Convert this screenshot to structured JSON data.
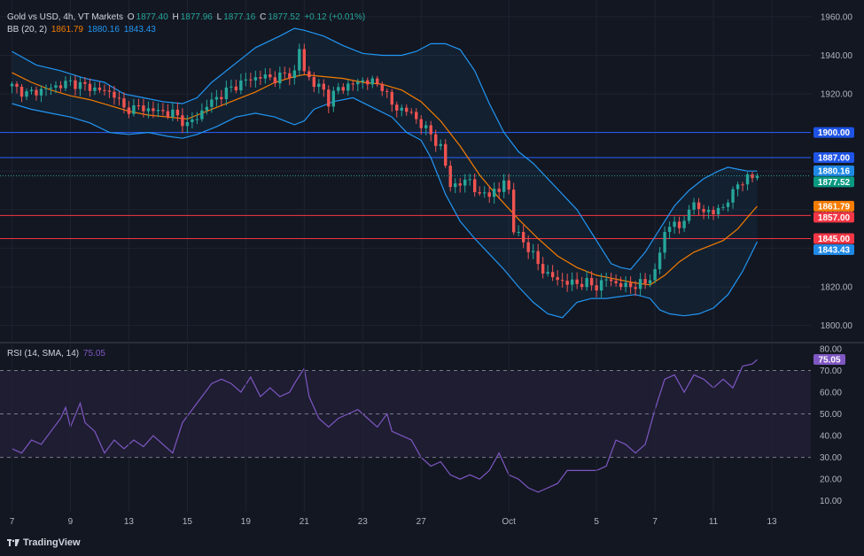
{
  "chart_data": [
    {
      "type": "candlestick",
      "title": "Gold vs USD, 4h, VT Markets",
      "ohlc_legend": {
        "o_label": "O",
        "o_value": "1877.40",
        "h_label": "H",
        "h_value": "1877.96",
        "l_label": "L",
        "l_value": "1877.16",
        "c_label": "C",
        "c_value": "1877.52",
        "change": "+0.12 (+0.01%)"
      },
      "indicator": {
        "name": "BB (20, 2)",
        "basis": "1861.79",
        "upper": "1880.16",
        "lower": "1843.43",
        "basis_color": "#f57c00",
        "band_color": "#2196f3"
      },
      "y_ticks": [
        "1960.00",
        "1940.00",
        "1920.00",
        "1900.00",
        "1880.00",
        "1860.00",
        "1840.00",
        "1820.00",
        "1800.00"
      ],
      "y_range": [
        1792,
        1965
      ],
      "price_tags": [
        {
          "value": 1900.0,
          "label": "1900.00",
          "color": "#1e53e5"
        },
        {
          "value": 1887.0,
          "label": "1887.00",
          "color": "#1e53e5"
        },
        {
          "value": 1880.16,
          "label": "1880.16",
          "color": "#1e88e5"
        },
        {
          "value": 1877.52,
          "label": "1877.52",
          "color": "#089981"
        },
        {
          "value": 1861.79,
          "label": "1861.79",
          "color": "#f57c00"
        },
        {
          "value": 1857.0,
          "label": "1857.00",
          "color": "#f23645"
        },
        {
          "value": 1845.0,
          "label": "1845.00",
          "color": "#f23645"
        },
        {
          "value": 1843.43,
          "label": "1843.43",
          "color": "#1e88e5"
        }
      ],
      "horizontal_lines": [
        {
          "value": 1900,
          "color": "#2962ff"
        },
        {
          "value": 1887,
          "color": "#2962ff"
        },
        {
          "value": 1857,
          "color": "#f23645"
        },
        {
          "value": 1845,
          "color": "#f23645"
        }
      ],
      "x_ticks": [
        {
          "label": "7",
          "t": 0
        },
        {
          "label": "9",
          "t": 12
        },
        {
          "label": "13",
          "t": 24
        },
        {
          "label": "15",
          "t": 36
        },
        {
          "label": "19",
          "t": 48
        },
        {
          "label": "21",
          "t": 60
        },
        {
          "label": "23",
          "t": 72
        },
        {
          "label": "27",
          "t": 84
        },
        {
          "label": "Oct",
          "t": 102
        },
        {
          "label": "5",
          "t": 120
        },
        {
          "label": "7",
          "t": 132
        },
        {
          "label": "11",
          "t": 144
        },
        {
          "label": "13",
          "t": 156
        }
      ],
      "x_range": [
        -1,
        164
      ],
      "close_path": [
        [
          0,
          1924
        ],
        [
          3,
          1920
        ],
        [
          6,
          1922
        ],
        [
          9,
          1924
        ],
        [
          12,
          1926
        ],
        [
          15,
          1924
        ],
        [
          18,
          1922
        ],
        [
          21,
          1920
        ],
        [
          23,
          1912
        ],
        [
          26,
          1913
        ],
        [
          30,
          1911
        ],
        [
          33,
          1910
        ],
        [
          36,
          1904
        ],
        [
          38,
          1908
        ],
        [
          40,
          1914
        ],
        [
          42,
          1918
        ],
        [
          45,
          1923
        ],
        [
          48,
          1927
        ],
        [
          51,
          1929
        ],
        [
          54,
          1928
        ],
        [
          56,
          1930
        ],
        [
          58,
          1931
        ],
        [
          59,
          1943
        ],
        [
          60,
          1932
        ],
        [
          62,
          1925
        ],
        [
          64,
          1922
        ],
        [
          65,
          1916
        ],
        [
          67,
          1923
        ],
        [
          70,
          1925
        ],
        [
          72,
          1927
        ],
        [
          74,
          1926
        ],
        [
          76,
          1924
        ],
        [
          78,
          1914
        ],
        [
          80,
          1912
        ],
        [
          82,
          1910
        ],
        [
          84,
          1904
        ],
        [
          86,
          1899
        ],
        [
          88,
          1892
        ],
        [
          90,
          1873
        ],
        [
          92,
          1873
        ],
        [
          94,
          1876
        ],
        [
          96,
          1866
        ],
        [
          97,
          1869
        ],
        [
          100,
          1869
        ],
        [
          101,
          1876
        ],
        [
          102,
          1870
        ],
        [
          103,
          1849
        ],
        [
          104,
          1847
        ],
        [
          106,
          1840
        ],
        [
          108,
          1832
        ],
        [
          110,
          1826
        ],
        [
          112,
          1824
        ],
        [
          114,
          1822
        ],
        [
          116,
          1822
        ],
        [
          118,
          1822
        ],
        [
          120,
          1820
        ],
        [
          122,
          1824
        ],
        [
          124,
          1822
        ],
        [
          126,
          1820
        ],
        [
          128,
          1821
        ],
        [
          130,
          1822
        ],
        [
          132,
          1828
        ],
        [
          134,
          1848
        ],
        [
          136,
          1855
        ],
        [
          137,
          1848
        ],
        [
          139,
          1862
        ],
        [
          142,
          1860
        ],
        [
          144,
          1858
        ],
        [
          146,
          1862
        ],
        [
          148,
          1868
        ],
        [
          149,
          1874
        ],
        [
          151,
          1876
        ],
        [
          153,
          1877.5
        ]
      ],
      "upper_path": [
        [
          0,
          1942
        ],
        [
          5,
          1935
        ],
        [
          10,
          1932
        ],
        [
          15,
          1928
        ],
        [
          19,
          1926
        ],
        [
          23,
          1920
        ],
        [
          27,
          1918
        ],
        [
          31,
          1916
        ],
        [
          35,
          1915
        ],
        [
          38,
          1918
        ],
        [
          41,
          1926
        ],
        [
          44,
          1932
        ],
        [
          47,
          1938
        ],
        [
          50,
          1944
        ],
        [
          55,
          1950
        ],
        [
          58,
          1954
        ],
        [
          60,
          1953
        ],
        [
          64,
          1950
        ],
        [
          68,
          1945
        ],
        [
          72,
          1941
        ],
        [
          76,
          1940
        ],
        [
          80,
          1940
        ],
        [
          83,
          1942
        ],
        [
          86,
          1946
        ],
        [
          89,
          1946
        ],
        [
          92,
          1943
        ],
        [
          95,
          1932
        ],
        [
          98,
          1915
        ],
        [
          101,
          1900
        ],
        [
          104,
          1890
        ],
        [
          107,
          1884
        ],
        [
          110,
          1876
        ],
        [
          113,
          1868
        ],
        [
          116,
          1860
        ],
        [
          119,
          1848
        ],
        [
          121,
          1840
        ],
        [
          123,
          1832
        ],
        [
          125,
          1830
        ],
        [
          127,
          1829
        ],
        [
          128,
          1832
        ],
        [
          130,
          1838
        ],
        [
          133,
          1850
        ],
        [
          136,
          1862
        ],
        [
          139,
          1870
        ],
        [
          142,
          1876
        ],
        [
          145,
          1880
        ],
        [
          147,
          1882
        ],
        [
          149,
          1881
        ],
        [
          151,
          1880
        ],
        [
          153,
          1880
        ]
      ],
      "basis_path": [
        [
          0,
          1931
        ],
        [
          4,
          1926
        ],
        [
          8,
          1922
        ],
        [
          12,
          1919
        ],
        [
          16,
          1917
        ],
        [
          20,
          1914
        ],
        [
          24,
          1911
        ],
        [
          28,
          1909
        ],
        [
          32,
          1908
        ],
        [
          36,
          1907
        ],
        [
          38,
          1909
        ],
        [
          42,
          1913
        ],
        [
          46,
          1917
        ],
        [
          50,
          1921
        ],
        [
          54,
          1926
        ],
        [
          58,
          1929
        ],
        [
          60,
          1930
        ],
        [
          64,
          1929
        ],
        [
          68,
          1928
        ],
        [
          72,
          1926
        ],
        [
          76,
          1925
        ],
        [
          80,
          1922
        ],
        [
          84,
          1916
        ],
        [
          88,
          1906
        ],
        [
          92,
          1893
        ],
        [
          96,
          1878
        ],
        [
          100,
          1866
        ],
        [
          104,
          1855
        ],
        [
          108,
          1845
        ],
        [
          112,
          1836
        ],
        [
          116,
          1830
        ],
        [
          120,
          1826
        ],
        [
          124,
          1824
        ],
        [
          128,
          1822
        ],
        [
          131,
          1821
        ],
        [
          134,
          1826
        ],
        [
          137,
          1833
        ],
        [
          140,
          1838
        ],
        [
          143,
          1841
        ],
        [
          146,
          1844
        ],
        [
          149,
          1850
        ],
        [
          151,
          1856
        ],
        [
          153,
          1861.8
        ]
      ],
      "lower_path": [
        [
          0,
          1915
        ],
        [
          4,
          1912
        ],
        [
          8,
          1910
        ],
        [
          12,
          1908
        ],
        [
          16,
          1905
        ],
        [
          20,
          1900
        ],
        [
          24,
          1899
        ],
        [
          28,
          1900
        ],
        [
          32,
          1898
        ],
        [
          35,
          1897
        ],
        [
          38,
          1899
        ],
        [
          42,
          1903
        ],
        [
          46,
          1908
        ],
        [
          50,
          1910
        ],
        [
          54,
          1908
        ],
        [
          56,
          1906
        ],
        [
          58,
          1904
        ],
        [
          60,
          1906
        ],
        [
          62,
          1912
        ],
        [
          66,
          1916
        ],
        [
          70,
          1918
        ],
        [
          74,
          1913
        ],
        [
          78,
          1908
        ],
        [
          81,
          1900
        ],
        [
          84,
          1896
        ],
        [
          86,
          1887
        ],
        [
          89,
          1868
        ],
        [
          92,
          1854
        ],
        [
          95,
          1845
        ],
        [
          98,
          1837
        ],
        [
          101,
          1829
        ],
        [
          104,
          1820
        ],
        [
          107,
          1812
        ],
        [
          110,
          1806
        ],
        [
          113,
          1804
        ],
        [
          116,
          1812
        ],
        [
          119,
          1814
        ],
        [
          122,
          1814
        ],
        [
          125,
          1815
        ],
        [
          128,
          1816
        ],
        [
          131,
          1814
        ],
        [
          133,
          1808
        ],
        [
          135,
          1806
        ],
        [
          138,
          1805
        ],
        [
          141,
          1806
        ],
        [
          144,
          1809
        ],
        [
          147,
          1816
        ],
        [
          150,
          1828
        ],
        [
          153,
          1843.4
        ]
      ]
    },
    {
      "type": "line",
      "name": "RSI (14, SMA, 14)",
      "value": "75.05",
      "color": "#7e57c2",
      "y_range": [
        5,
        82
      ],
      "y_ticks": [
        "80.00",
        "70.00",
        "60.00",
        "50.00",
        "40.00",
        "30.00",
        "20.00",
        "10.00"
      ],
      "levels": [
        70,
        50,
        30
      ],
      "points": [
        [
          0,
          34
        ],
        [
          2,
          32
        ],
        [
          4,
          38
        ],
        [
          6,
          36
        ],
        [
          8,
          42
        ],
        [
          10,
          48
        ],
        [
          11,
          53
        ],
        [
          12,
          44
        ],
        [
          14,
          55
        ],
        [
          15,
          46
        ],
        [
          17,
          42
        ],
        [
          19,
          32
        ],
        [
          21,
          38
        ],
        [
          23,
          34
        ],
        [
          25,
          38
        ],
        [
          27,
          35
        ],
        [
          29,
          40
        ],
        [
          31,
          36
        ],
        [
          33,
          32
        ],
        [
          35,
          46
        ],
        [
          37,
          52
        ],
        [
          39,
          58
        ],
        [
          41,
          64
        ],
        [
          43,
          66
        ],
        [
          45,
          64
        ],
        [
          47,
          60
        ],
        [
          49,
          67
        ],
        [
          51,
          58
        ],
        [
          53,
          62
        ],
        [
          55,
          58
        ],
        [
          57,
          60
        ],
        [
          58,
          64
        ],
        [
          60,
          71
        ],
        [
          61,
          58
        ],
        [
          63,
          48
        ],
        [
          65,
          44
        ],
        [
          67,
          48
        ],
        [
          69,
          50
        ],
        [
          71,
          52
        ],
        [
          73,
          48
        ],
        [
          75,
          44
        ],
        [
          77,
          50
        ],
        [
          78,
          42
        ],
        [
          80,
          40
        ],
        [
          82,
          38
        ],
        [
          84,
          30
        ],
        [
          86,
          26
        ],
        [
          88,
          28
        ],
        [
          90,
          22
        ],
        [
          92,
          20
        ],
        [
          94,
          22
        ],
        [
          96,
          20
        ],
        [
          98,
          24
        ],
        [
          100,
          32
        ],
        [
          102,
          22
        ],
        [
          104,
          20
        ],
        [
          106,
          16
        ],
        [
          108,
          14
        ],
        [
          110,
          16
        ],
        [
          112,
          18
        ],
        [
          114,
          24
        ],
        [
          116,
          24
        ],
        [
          118,
          24
        ],
        [
          120,
          24
        ],
        [
          122,
          26
        ],
        [
          124,
          38
        ],
        [
          126,
          36
        ],
        [
          128,
          32
        ],
        [
          130,
          36
        ],
        [
          132,
          52
        ],
        [
          134,
          66
        ],
        [
          136,
          68
        ],
        [
          138,
          60
        ],
        [
          140,
          68
        ],
        [
          142,
          66
        ],
        [
          144,
          62
        ],
        [
          146,
          66
        ],
        [
          148,
          62
        ],
        [
          150,
          72
        ],
        [
          152,
          73
        ],
        [
          153,
          75
        ]
      ]
    }
  ],
  "footer": {
    "brand": "TradingView"
  }
}
